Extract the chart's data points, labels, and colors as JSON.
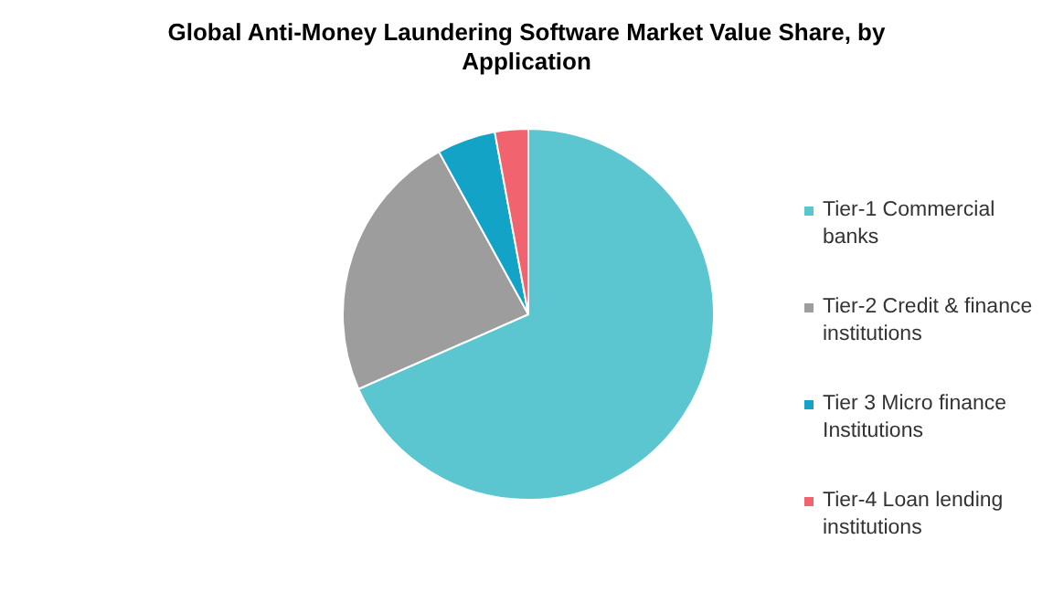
{
  "chart_data": {
    "type": "pie",
    "title": "Global Anti-Money Laundering Software Market Value Share, by Application",
    "categories": [
      "Tier-1 Commercial banks",
      "Tier-2 Credit & finance institutions",
      "Tier 3 Micro finance Institutions",
      "Tier-4 Loan lending institutions"
    ],
    "values": [
      68.4,
      23.6,
      5.1,
      2.9
    ],
    "colors": [
      "#5bc5d0",
      "#9d9d9d",
      "#13a3c6",
      "#f1646f"
    ],
    "legend": "right"
  }
}
